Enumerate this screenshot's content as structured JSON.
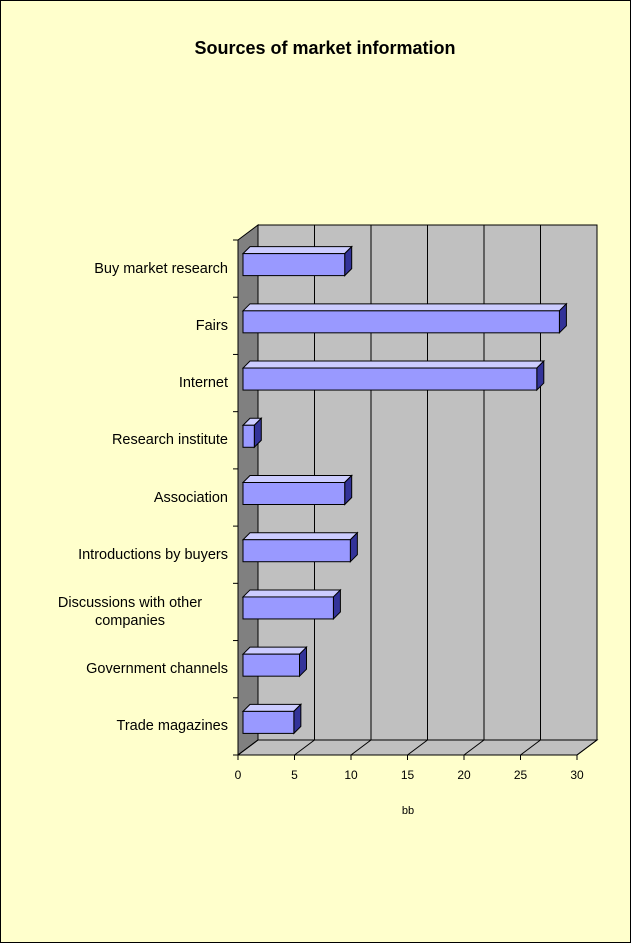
{
  "chart_data": {
    "type": "bar",
    "orientation": "horizontal",
    "title": "Sources of market information",
    "categories": [
      "Buy market research",
      "Fairs",
      "Internet",
      "Research institute",
      "Association",
      "Introductions by buyers",
      "Discussions with other companies",
      "Government channels",
      "Trade magazines"
    ],
    "values": [
      9,
      28,
      26,
      1,
      9,
      9.5,
      8,
      5,
      4.5
    ],
    "color": "#9999ff",
    "xlabel": "bb",
    "xlim": [
      0,
      30
    ],
    "xticks": [
      0,
      5,
      10,
      15,
      20,
      25,
      30
    ],
    "grid": true
  }
}
